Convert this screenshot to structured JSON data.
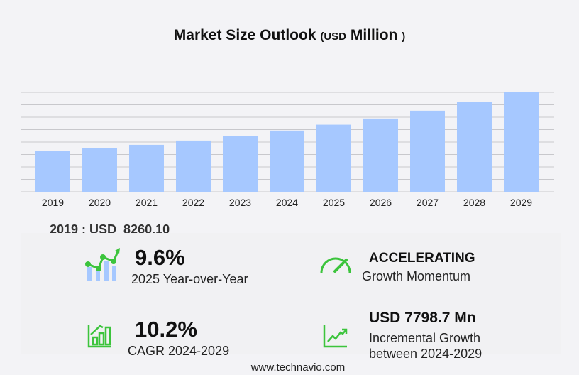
{
  "title": {
    "main": "Market Size Outlook",
    "paren_open": "(",
    "unit": "USD",
    "unit_rest": "Million",
    "paren_close": ")"
  },
  "chart_data": {
    "type": "bar",
    "title": "Market Size Outlook (USD Million)",
    "categories": [
      "2019",
      "2020",
      "2021",
      "2022",
      "2023",
      "2024",
      "2025",
      "2026",
      "2027",
      "2028",
      "2029"
    ],
    "values": [
      8260.1,
      8845,
      9570,
      10440,
      11310,
      12478,
      13676,
      14935,
      16530,
      18270,
      20277
    ],
    "ylim": [
      0,
      20277
    ],
    "grid": true,
    "color": "#a6c8ff"
  },
  "base_label": "2019 : USD  8260.10",
  "stats": {
    "yoy": {
      "value": "9.6%",
      "label": "2025 Year-over-Year",
      "icon": "bar-line-growth-icon"
    },
    "momentum": {
      "value": "ACCELERATING",
      "label": "Growth Momentum",
      "icon": "speedometer-icon"
    },
    "cagr": {
      "value": "10.2%",
      "label": "CAGR 2024-2029",
      "icon": "bar-chart-growth-icon"
    },
    "incremental": {
      "value": "USD 7798.7 Mn",
      "label1": "Incremental Growth",
      "label2": "between 2024-2029",
      "icon": "trend-line-icon"
    }
  },
  "colors": {
    "accent": "#3cc43c",
    "bar": "#a6c8ff"
  },
  "footer": "www.technavio.com"
}
